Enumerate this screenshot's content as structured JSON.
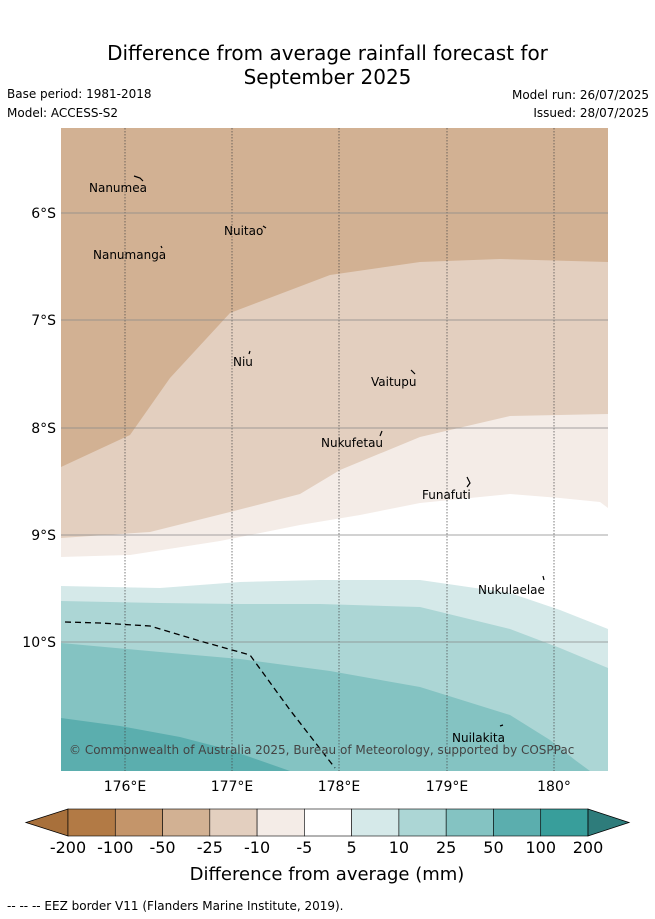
{
  "title_line1": "Difference from average rainfall forecast for",
  "title_line2": "September 2025",
  "base_period": "Base period: 1981-2018",
  "model": "Model: ACCESS-S2",
  "model_run": "Model run: 26/07/2025",
  "issued": "Issued: 28/07/2025",
  "copyright": "© Commonwealth of Australia 2025, Bureau of Meteorology, supported by COSPPac",
  "places": [
    "Nanumea",
    "Nuitao",
    "Nanumanga",
    "Niu",
    "Vaitupu",
    "Nukufetau",
    "Funafuti",
    "Nukulaelae",
    "Nuilakita"
  ],
  "lat_ticks": [
    "6°S",
    "7°S",
    "8°S",
    "9°S",
    "10°S"
  ],
  "lon_ticks": [
    "176°E",
    "177°E",
    "178°E",
    "179°E",
    "180°"
  ],
  "colorbar": {
    "ticks": [
      "-200",
      "-100",
      "-50",
      "-25",
      "-10",
      "-5",
      "5",
      "10",
      "25",
      "50",
      "100",
      "200"
    ],
    "colors": [
      "#a8703b",
      "#b27a45",
      "#c4956a",
      "#d2b193",
      "#e3cfbf",
      "#f4ece7",
      "#ffffff",
      "#d5e9e9",
      "#acd6d5",
      "#84c3c2",
      "#5baeae",
      "#389e9b",
      "#2e7c7b"
    ],
    "title": "Difference from average (mm)"
  },
  "footer": "--  --  -- EEZ border V11 (Flanders Marine Institute, 2019)."
}
